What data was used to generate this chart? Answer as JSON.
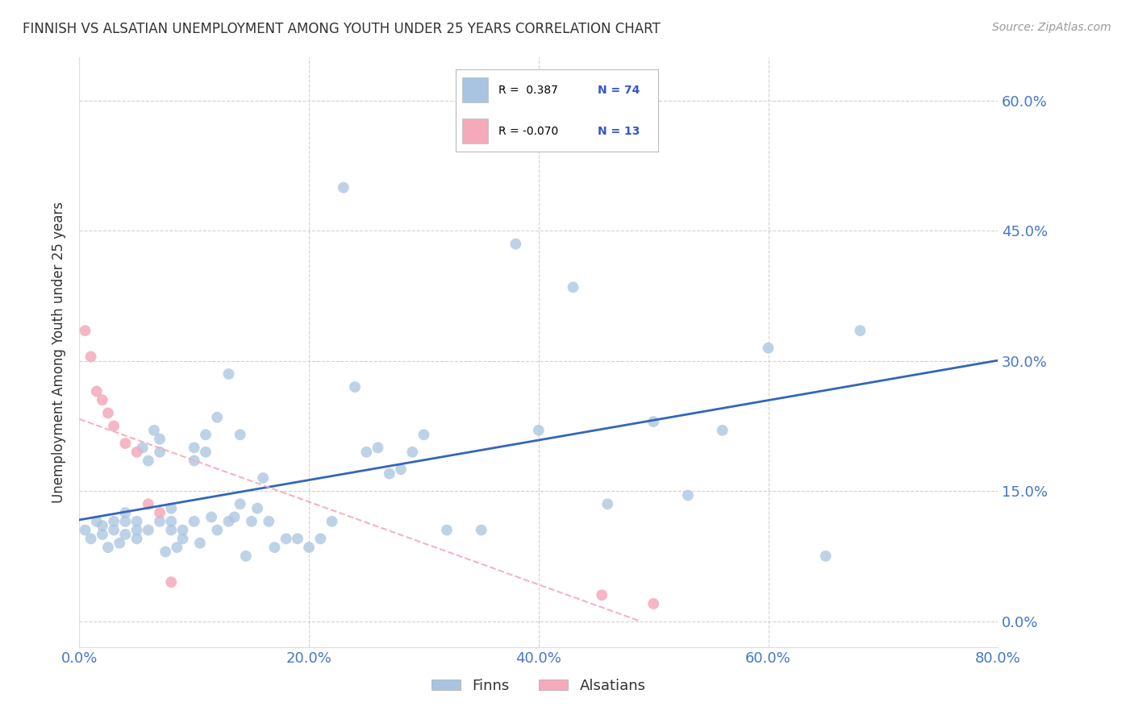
{
  "title": "FINNISH VS ALSATIAN UNEMPLOYMENT AMONG YOUTH UNDER 25 YEARS CORRELATION CHART",
  "source": "Source: ZipAtlas.com",
  "ylabel": "Unemployment Among Youth under 25 years",
  "legend_label1": "Finns",
  "legend_label2": "Alsatians",
  "R1": "0.387",
  "N1": "74",
  "R2": "-0.070",
  "N2": "13",
  "blue_color": "#A8C4E0",
  "pink_color": "#F4AABB",
  "trend_blue": "#3366BB",
  "trend_pink": "#F4AABB",
  "background": "#ffffff",
  "grid_color": "#cccccc",
  "title_color": "#333333",
  "tick_color": "#4477CC",
  "legend_text_color": "#000000",
  "legend_N_color": "#3355CC",
  "xlim": [
    0.0,
    0.8
  ],
  "ylim": [
    -0.03,
    0.65
  ],
  "x_ticks": [
    0.0,
    0.2,
    0.4,
    0.6,
    0.8
  ],
  "y_ticks": [
    0.0,
    0.15,
    0.3,
    0.45,
    0.6
  ],
  "finns_x": [
    0.005,
    0.01,
    0.015,
    0.02,
    0.02,
    0.025,
    0.03,
    0.03,
    0.035,
    0.04,
    0.04,
    0.04,
    0.05,
    0.05,
    0.05,
    0.055,
    0.06,
    0.06,
    0.065,
    0.07,
    0.07,
    0.07,
    0.075,
    0.08,
    0.08,
    0.08,
    0.085,
    0.09,
    0.09,
    0.1,
    0.1,
    0.1,
    0.105,
    0.11,
    0.11,
    0.115,
    0.12,
    0.12,
    0.13,
    0.13,
    0.135,
    0.14,
    0.14,
    0.145,
    0.15,
    0.155,
    0.16,
    0.165,
    0.17,
    0.18,
    0.19,
    0.2,
    0.21,
    0.22,
    0.23,
    0.24,
    0.25,
    0.26,
    0.27,
    0.28,
    0.29,
    0.3,
    0.32,
    0.35,
    0.38,
    0.4,
    0.43,
    0.46,
    0.5,
    0.53,
    0.56,
    0.6,
    0.65,
    0.68
  ],
  "finns_y": [
    0.105,
    0.095,
    0.115,
    0.1,
    0.11,
    0.085,
    0.105,
    0.115,
    0.09,
    0.1,
    0.115,
    0.125,
    0.095,
    0.105,
    0.115,
    0.2,
    0.185,
    0.105,
    0.22,
    0.195,
    0.21,
    0.115,
    0.08,
    0.105,
    0.115,
    0.13,
    0.085,
    0.095,
    0.105,
    0.185,
    0.2,
    0.115,
    0.09,
    0.195,
    0.215,
    0.12,
    0.105,
    0.235,
    0.115,
    0.285,
    0.12,
    0.135,
    0.215,
    0.075,
    0.115,
    0.13,
    0.165,
    0.115,
    0.085,
    0.095,
    0.095,
    0.085,
    0.095,
    0.115,
    0.5,
    0.27,
    0.195,
    0.2,
    0.17,
    0.175,
    0.195,
    0.215,
    0.105,
    0.105,
    0.435,
    0.22,
    0.385,
    0.135,
    0.23,
    0.145,
    0.22,
    0.315,
    0.075,
    0.335
  ],
  "alsatians_x": [
    0.005,
    0.01,
    0.015,
    0.02,
    0.025,
    0.03,
    0.04,
    0.05,
    0.06,
    0.07,
    0.08,
    0.455,
    0.5
  ],
  "alsatians_y": [
    0.335,
    0.305,
    0.265,
    0.255,
    0.24,
    0.225,
    0.205,
    0.195,
    0.135,
    0.125,
    0.045,
    0.03,
    0.02
  ]
}
